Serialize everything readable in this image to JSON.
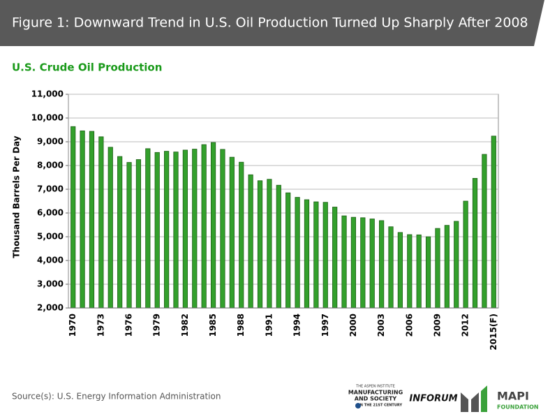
{
  "header": {
    "title": "Figure 1: Downward Trend in U.S. Oil Production Turned Up Sharply After 2008"
  },
  "chart_data": {
    "type": "bar",
    "title": "U.S. Crude Oil Production",
    "y_label": "Thousand Barrels Per Day",
    "categories": [
      "1970",
      null,
      null,
      "1973",
      null,
      null,
      "1976",
      null,
      null,
      "1979",
      null,
      null,
      "1982",
      null,
      null,
      "1985",
      null,
      null,
      "1988",
      null,
      null,
      "1991",
      null,
      null,
      "1994",
      null,
      null,
      "1997",
      null,
      null,
      "2000",
      null,
      null,
      "2003",
      null,
      null,
      "2006",
      null,
      null,
      "2009",
      null,
      null,
      "2012",
      null,
      null,
      "2015(F)"
    ],
    "values": [
      9640,
      9460,
      9440,
      9210,
      8770,
      8380,
      8130,
      8250,
      8710,
      8550,
      8600,
      8570,
      8650,
      8690,
      8880,
      8970,
      8680,
      8350,
      8140,
      7610,
      7360,
      7420,
      7170,
      6850,
      6660,
      6560,
      6470,
      6450,
      6250,
      5880,
      5820,
      5800,
      5750,
      5680,
      5420,
      5180,
      5090,
      5080,
      5000,
      5350,
      5480,
      5650,
      6500,
      7460,
      8470,
      9240
    ],
    "color": "#33a02c",
    "ylim": [
      2000,
      11000
    ],
    "yticks": [
      {
        "value": 2000,
        "label": "2,000"
      },
      {
        "value": 3000,
        "label": "3,000"
      },
      {
        "value": 4000,
        "label": "4,000"
      },
      {
        "value": 5000,
        "label": "5,000"
      },
      {
        "value": 6000,
        "label": "6,000"
      },
      {
        "value": 7000,
        "label": "7,000"
      },
      {
        "value": 8000,
        "label": "8,000"
      },
      {
        "value": 9000,
        "label": "9,000"
      },
      {
        "value": 10000,
        "label": "10,000"
      },
      {
        "value": 11000,
        "label": "11,000"
      }
    ],
    "grid": true
  },
  "footer": {
    "source": "Source(s): U.S. Energy Information Administration",
    "logos": [
      "THE ASPEN INSTITUTE",
      "MANUFACTURING",
      "AND SOCIETY",
      "IN THE 21ST CENTURY",
      "INFORUM",
      "MAPI",
      "FOUNDATION"
    ]
  }
}
